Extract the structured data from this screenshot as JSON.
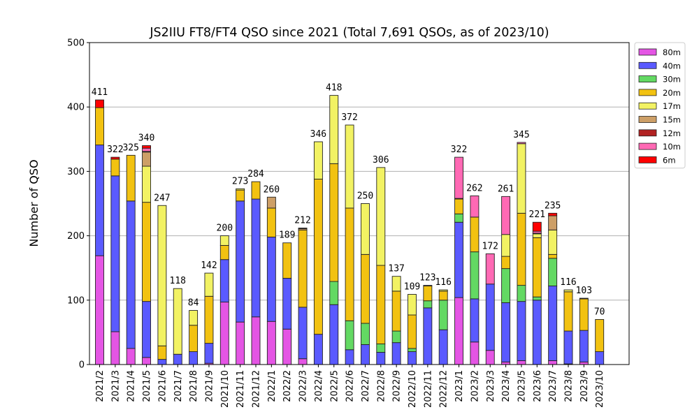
{
  "chart_data": {
    "type": "bar",
    "stacked": true,
    "title": "JS2IIU FT8/FT4 QSO since 2021 (Total 7,691 QSOs, as of 2023/10)",
    "xlabel": "",
    "ylabel": "Number of QSO",
    "ylim": [
      0,
      500
    ],
    "yticks": [
      0,
      100,
      200,
      300,
      400,
      500
    ],
    "grid": "y",
    "legend_position": "right-outside-top",
    "categories": [
      "2021/2",
      "2021/3",
      "2021/4",
      "2021/5",
      "2021/6",
      "2021/7",
      "2021/8",
      "2021/9",
      "2021/10",
      "2021/11",
      "2021/12",
      "2022/1",
      "2022/2",
      "2022/3",
      "2022/4",
      "2022/5",
      "2022/6",
      "2022/7",
      "2022/8",
      "2022/9",
      "2022/10",
      "2022/11",
      "2022/12",
      "2023/1",
      "2023/2",
      "2023/3",
      "2023/4",
      "2023/5",
      "2023/6",
      "2023/7",
      "2023/8",
      "2023/9",
      "2023/10"
    ],
    "totals": [
      411,
      322,
      325,
      340,
      247,
      118,
      84,
      142,
      200,
      273,
      284,
      260,
      189,
      212,
      346,
      418,
      372,
      250,
      306,
      137,
      109,
      123,
      116,
      322,
      262,
      172,
      261,
      345,
      221,
      235,
      116,
      103,
      70
    ],
    "series": [
      {
        "name": "80m",
        "color": "#e455e4",
        "values": [
          169,
          51,
          25,
          11,
          0,
          0,
          0,
          2,
          97,
          66,
          74,
          67,
          55,
          9,
          0,
          0,
          0,
          0,
          0,
          0,
          0,
          0,
          0,
          104,
          35,
          22,
          4,
          6,
          0,
          6,
          1,
          4,
          0
        ]
      },
      {
        "name": "40m",
        "color": "#5a5aff",
        "values": [
          172,
          242,
          229,
          87,
          8,
          16,
          20,
          31,
          66,
          188,
          183,
          131,
          79,
          80,
          47,
          93,
          23,
          31,
          19,
          34,
          20,
          88,
          54,
          117,
          67,
          103,
          92,
          92,
          100,
          116,
          51,
          49,
          20
        ]
      },
      {
        "name": "30m",
        "color": "#63d963",
        "values": [
          0,
          0,
          0,
          0,
          0,
          0,
          0,
          0,
          0,
          0,
          0,
          0,
          0,
          0,
          0,
          36,
          45,
          33,
          13,
          18,
          5,
          11,
          46,
          13,
          73,
          0,
          53,
          25,
          5,
          43,
          0,
          0,
          0
        ]
      },
      {
        "name": "20m",
        "color": "#f2c211",
        "values": [
          58,
          26,
          71,
          154,
          21,
          0,
          41,
          73,
          22,
          17,
          27,
          45,
          55,
          120,
          241,
          183,
          175,
          107,
          122,
          62,
          52,
          23,
          14,
          23,
          54,
          0,
          19,
          112,
          92,
          6,
          61,
          49,
          50
        ]
      },
      {
        "name": "17m",
        "color": "#f2f263",
        "values": [
          0,
          0,
          0,
          56,
          218,
          102,
          23,
          36,
          15,
          2,
          0,
          0,
          0,
          0,
          58,
          106,
          129,
          79,
          152,
          23,
          32,
          0,
          2,
          0,
          0,
          0,
          34,
          108,
          6,
          38,
          3,
          0,
          0
        ]
      },
      {
        "name": "15m",
        "color": "#cd9f67",
        "values": [
          0,
          0,
          0,
          22,
          0,
          0,
          0,
          0,
          0,
          0,
          0,
          17,
          0,
          2,
          0,
          0,
          0,
          0,
          0,
          0,
          0,
          0,
          0,
          0,
          0,
          0,
          0,
          0,
          0,
          22,
          0,
          0,
          0
        ]
      },
      {
        "name": "12m",
        "color": "#b22222",
        "values": [
          0,
          0,
          0,
          1,
          0,
          0,
          0,
          0,
          0,
          0,
          0,
          0,
          0,
          1,
          0,
          0,
          0,
          0,
          0,
          0,
          0,
          1,
          0,
          1,
          0,
          0,
          0,
          0,
          1,
          0,
          0,
          1,
          0
        ]
      },
      {
        "name": "10m",
        "color": "#ff69b4",
        "values": [
          0,
          0,
          0,
          5,
          0,
          0,
          0,
          0,
          0,
          0,
          0,
          0,
          0,
          0,
          0,
          0,
          0,
          0,
          0,
          0,
          0,
          0,
          0,
          64,
          33,
          47,
          59,
          2,
          3,
          0,
          0,
          0,
          0
        ]
      },
      {
        "name": "6m",
        "color": "#ff0000",
        "values": [
          12,
          3,
          0,
          4,
          0,
          0,
          0,
          0,
          0,
          0,
          0,
          0,
          0,
          0,
          0,
          0,
          0,
          0,
          0,
          0,
          0,
          0,
          0,
          0,
          0,
          0,
          0,
          0,
          14,
          4,
          0,
          0,
          0
        ]
      }
    ]
  }
}
